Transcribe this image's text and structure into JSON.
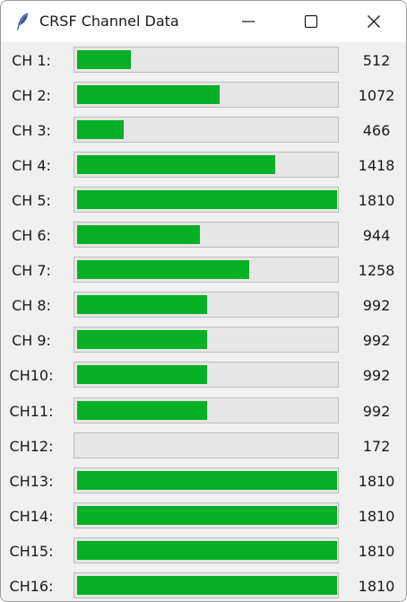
{
  "window": {
    "title": "CRSF Channel Data",
    "app_icon": "feather-icon",
    "controls": [
      "minimize-icon",
      "maximize-icon",
      "close-icon"
    ]
  },
  "channels": {
    "fill_color": "#06b025",
    "trough_color": "#e6e6e6",
    "min": 172,
    "max": 1810,
    "items": [
      {
        "label": "CH 1:",
        "value": "512"
      },
      {
        "label": "CH 2:",
        "value": "1072"
      },
      {
        "label": "CH 3:",
        "value": "466"
      },
      {
        "label": "CH 4:",
        "value": "1418"
      },
      {
        "label": "CH 5:",
        "value": "1810"
      },
      {
        "label": "CH 6:",
        "value": "944"
      },
      {
        "label": "CH 7:",
        "value": "1258"
      },
      {
        "label": "CH 8:",
        "value": "992"
      },
      {
        "label": "CH 9:",
        "value": "992"
      },
      {
        "label": "CH10:",
        "value": "992"
      },
      {
        "label": "CH11:",
        "value": "992"
      },
      {
        "label": "CH12:",
        "value": "172"
      },
      {
        "label": "CH13:",
        "value": "1810"
      },
      {
        "label": "CH14:",
        "value": "1810"
      },
      {
        "label": "CH15:",
        "value": "1810"
      },
      {
        "label": "CH16:",
        "value": "1810"
      }
    ]
  }
}
